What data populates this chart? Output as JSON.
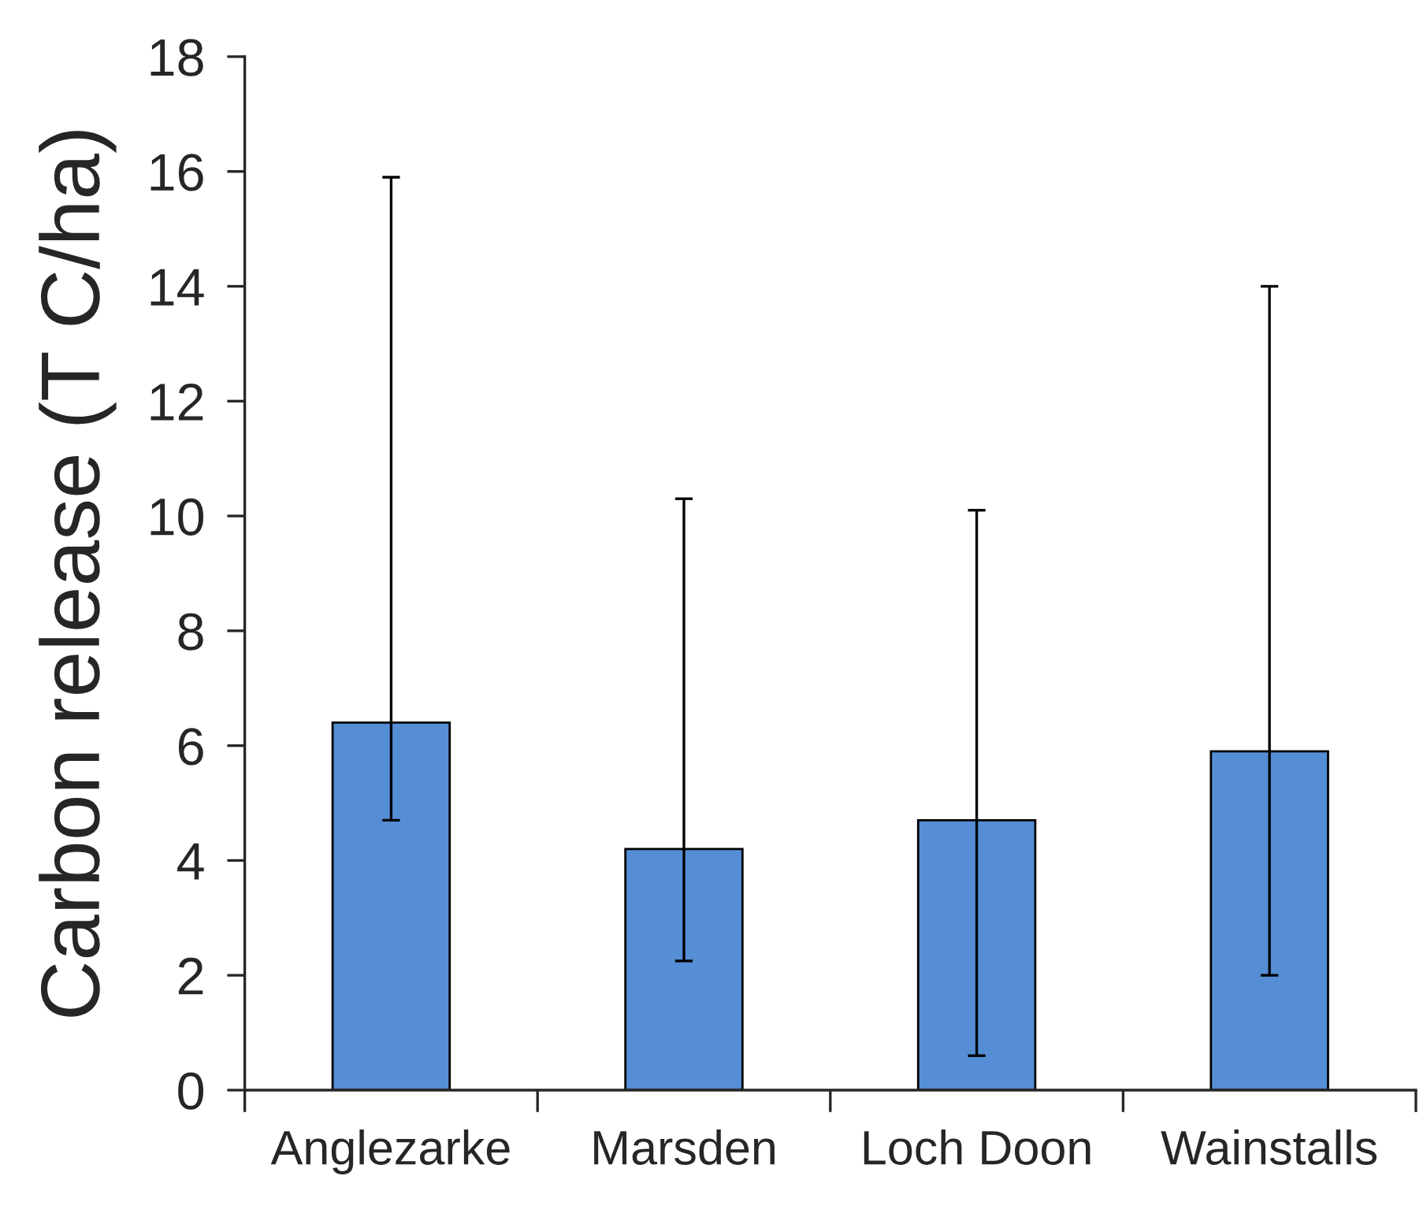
{
  "chart_data": {
    "type": "bar",
    "ylabel": "Carbon release (T C/ha)",
    "categories": [
      "Anglezarke",
      "Marsden",
      "Loch Doon",
      "Wainstalls"
    ],
    "values": [
      6.4,
      4.2,
      4.7,
      5.9
    ],
    "errors": [
      [
        4.7,
        15.9
      ],
      [
        2.25,
        10.3
      ],
      [
        0.6,
        10.1
      ],
      [
        2.0,
        14.0
      ]
    ],
    "color": "#558ed5",
    "ylim": [
      0,
      18
    ],
    "yticks": [
      0,
      2,
      4,
      6,
      8,
      10,
      12,
      14,
      16,
      18
    ],
    "grid": false
  }
}
